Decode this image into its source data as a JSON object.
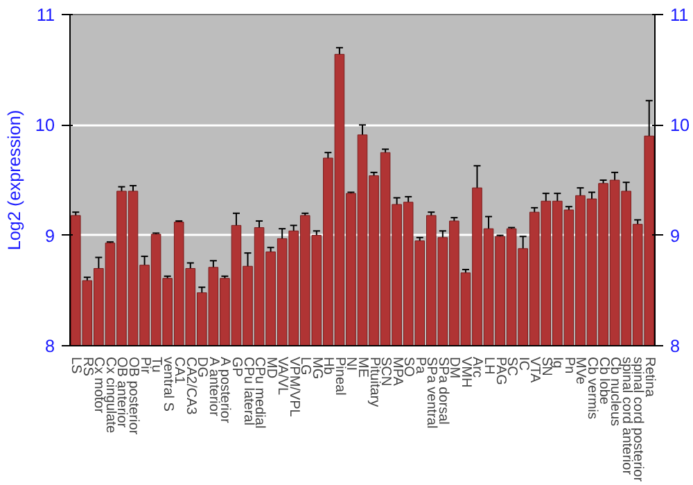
{
  "chart_data": {
    "type": "bar",
    "ylabel": "Log2 (expression)",
    "categories": [
      "LS",
      "RS",
      "Cx motor",
      "Cx cingulate",
      "OB anterior",
      "OB posterior",
      "Pir",
      "Tu",
      "ventral S",
      "CA1",
      "CA2/CA3",
      "DG",
      "A anterior",
      "A posterior",
      "GP",
      "CPu lateral",
      "CPu medial",
      "MD",
      "VA/VL",
      "VPM/VPL",
      "LG",
      "MG",
      "Hb",
      "Pineal",
      "NI",
      "ME",
      "Pituitary",
      "SCN",
      "MPA",
      "SO",
      "Pa",
      "SPa ventral",
      "SPa dorsal",
      "DM",
      "VMH",
      "Arc",
      "LH",
      "PAG",
      "SC",
      "IC",
      "VTA",
      "SN",
      "Ig",
      "Pn",
      "MVe",
      "Cb vermis",
      "Cb lobe",
      "Cb nucleus",
      "spinal cord anterior",
      "spinal cord posterior",
      "Retina"
    ],
    "values": [
      9.18,
      8.59,
      8.7,
      8.93,
      9.4,
      9.4,
      8.73,
      9.01,
      8.61,
      9.12,
      8.7,
      8.48,
      8.71,
      8.61,
      9.09,
      8.72,
      9.07,
      8.85,
      8.97,
      9.04,
      9.18,
      9.0,
      9.7,
      10.64,
      9.38,
      9.91,
      9.54,
      9.75,
      9.28,
      9.3,
      8.95,
      9.18,
      8.98,
      9.13,
      8.66,
      9.43,
      9.06,
      8.99,
      9.06,
      8.88,
      9.21,
      9.31,
      9.31,
      9.23,
      9.36,
      9.33,
      9.47,
      9.5,
      9.4,
      9.1,
      9.9
    ],
    "errors": [
      0.03,
      0.03,
      0.1,
      0.01,
      0.04,
      0.05,
      0.08,
      0.01,
      0.02,
      0.01,
      0.05,
      0.05,
      0.06,
      0.02,
      0.11,
      0.12,
      0.06,
      0.04,
      0.09,
      0.05,
      0.02,
      0.04,
      0.05,
      0.06,
      0.01,
      0.09,
      0.03,
      0.03,
      0.06,
      0.05,
      0.03,
      0.03,
      0.06,
      0.03,
      0.03,
      0.2,
      0.11,
      0.01,
      0.01,
      0.11,
      0.04,
      0.07,
      0.07,
      0.03,
      0.07,
      0.06,
      0.03,
      0.07,
      0.08,
      0.04,
      0.32
    ],
    "color": "#b03434",
    "ylim": [
      8,
      11
    ],
    "yticks": [
      8,
      9,
      10,
      11
    ],
    "y2lim": [
      8,
      11
    ],
    "y2ticks": [
      8,
      9,
      10,
      11
    ],
    "grid": "y"
  }
}
